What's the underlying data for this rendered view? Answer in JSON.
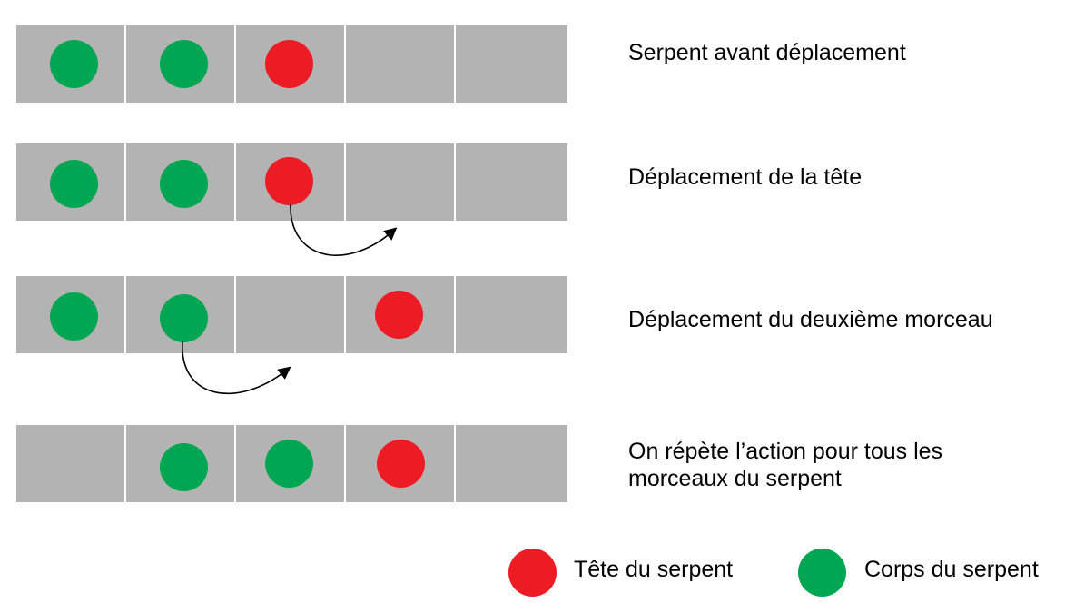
{
  "colors": {
    "head": "#ed1c24",
    "body": "#00a651",
    "cell": "#b3b3b3"
  },
  "steps": [
    {
      "caption": "Serpent avant déplacement",
      "cells": [
        "body",
        "body",
        "head",
        "empty",
        "empty"
      ]
    },
    {
      "caption": "Déplacement de la tête",
      "cells": [
        "body",
        "body",
        "head",
        "empty",
        "empty"
      ]
    },
    {
      "caption": "Déplacement du deuxième morceau",
      "cells": [
        "body",
        "body",
        "empty",
        "head",
        "empty"
      ]
    },
    {
      "caption": "On répète l’action pour tous les\nmorceaux du serpent",
      "cells": [
        "empty",
        "body",
        "body",
        "head",
        "empty"
      ]
    }
  ],
  "legend": {
    "head_label": "Tête du serpent",
    "body_label": "Corps du serpent"
  }
}
